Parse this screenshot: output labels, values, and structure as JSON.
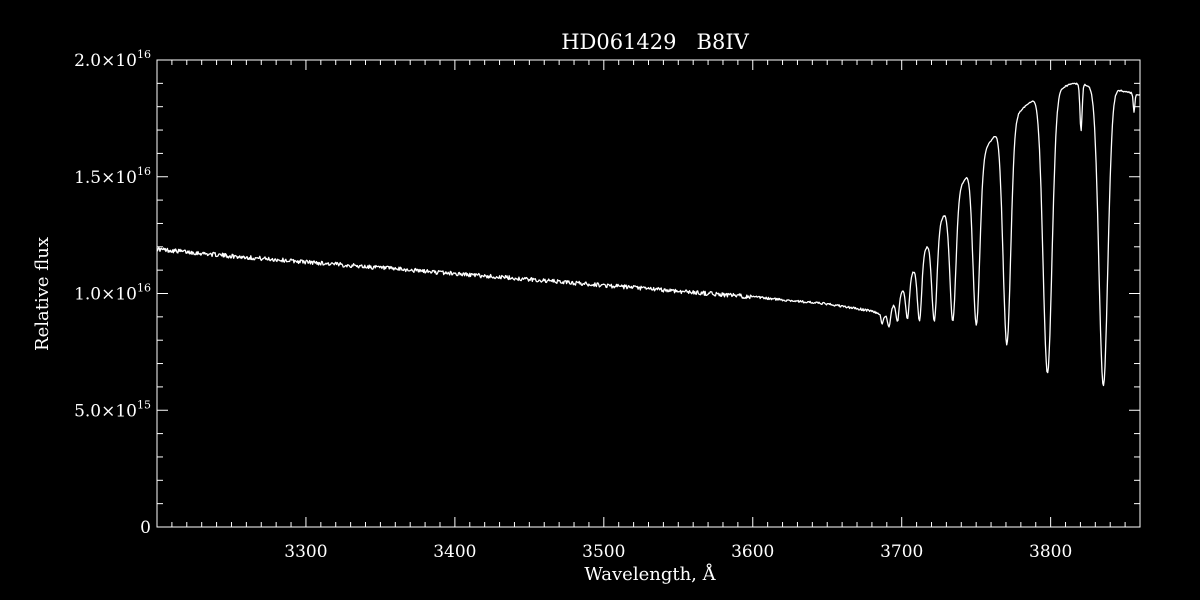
{
  "chart_data": {
    "type": "line",
    "title": "HD061429   B8IV",
    "xlabel": "Wavelength, Å",
    "ylabel": "Relative flux",
    "xlim": [
      3200,
      3860
    ],
    "ylim": [
      0,
      2e+16
    ],
    "x_ticks": [
      3300,
      3400,
      3500,
      3600,
      3700,
      3800
    ],
    "x_tick_labels": [
      "3300",
      "3400",
      "3500",
      "3600",
      "3700",
      "3800"
    ],
    "y_ticks": [
      0,
      5000000000000000.0,
      1e+16,
      1.5e+16,
      2e+16
    ],
    "y_tick_labels": [
      {
        "mantissa": "0",
        "exponent": ""
      },
      {
        "mantissa": "5.0×10",
        "exponent": "15"
      },
      {
        "mantissa": "1.0×10",
        "exponent": "16"
      },
      {
        "mantissa": "1.5×10",
        "exponent": "16"
      },
      {
        "mantissa": "2.0×10",
        "exponent": "16"
      }
    ],
    "grid": false,
    "line_color": "#ffffff",
    "background_color": "#000000",
    "continuum": [
      [
        3200,
        1.19e+16
      ],
      [
        3250,
        1.16e+16
      ],
      [
        3300,
        1.135e+16
      ],
      [
        3350,
        1.11e+16
      ],
      [
        3400,
        1.085e+16
      ],
      [
        3450,
        1.06e+16
      ],
      [
        3500,
        1.035e+16
      ],
      [
        3550,
        1.01e+16
      ],
      [
        3600,
        9850000000000000.0
      ],
      [
        3650,
        9550000000000000.0
      ],
      [
        3680,
        9250000000000000.0
      ],
      [
        3690,
        9000000000000000.0
      ],
      [
        3710,
        1.12e+16
      ],
      [
        3725,
        1.3e+16
      ],
      [
        3745,
        1.52e+16
      ],
      [
        3765,
        1.7e+16
      ],
      [
        3790,
        1.84e+16
      ],
      [
        3815,
        1.9e+16
      ],
      [
        3840,
        1.88e+16
      ],
      [
        3860,
        1.85e+16
      ]
    ],
    "balmer_lines": [
      {
        "x": 3686.8,
        "depth": 350000000000000.0,
        "width": 1.0
      },
      {
        "x": 3691.6,
        "depth": 600000000000000.0,
        "width": 1.2
      },
      {
        "x": 3697.2,
        "depth": 1000000000000000.0,
        "width": 1.4
      },
      {
        "x": 3703.9,
        "depth": 1600000000000000.0,
        "width": 1.7
      },
      {
        "x": 3711.97,
        "depth": 2600000000000000.0,
        "width": 2.0
      },
      {
        "x": 3721.94,
        "depth": 3800000000000000.0,
        "width": 2.4
      },
      {
        "x": 3734.37,
        "depth": 5200000000000000.0,
        "width": 2.8
      },
      {
        "x": 3750.15,
        "depth": 7000000000000000.0,
        "width": 3.2
      },
      {
        "x": 3770.63,
        "depth": 9500000000000000.0,
        "width": 3.6
      },
      {
        "x": 3797.9,
        "depth": 1.2e+16,
        "width": 4.2
      },
      {
        "x": 3835.4,
        "depth": 1.28e+16,
        "width": 4.2
      }
    ],
    "metal_lines": [
      {
        "x": 3820.4,
        "depth": 2000000000000000.0,
        "width": 1.0
      },
      {
        "x": 3856.0,
        "depth": 800000000000000.0,
        "width": 0.8
      }
    ]
  }
}
